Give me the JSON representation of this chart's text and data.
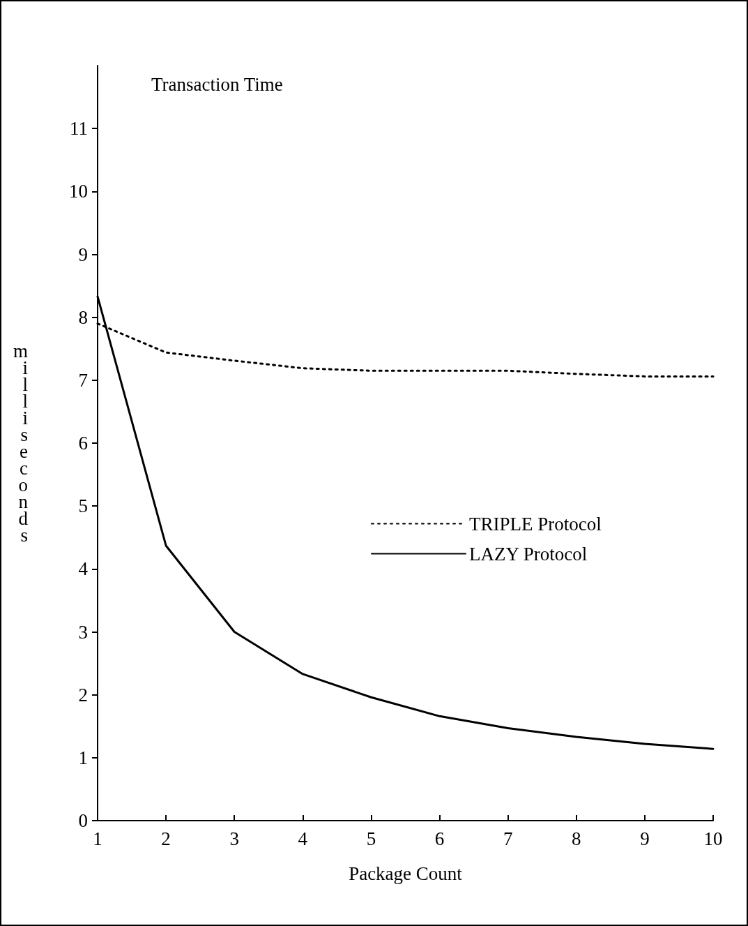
{
  "chart_data": {
    "type": "line",
    "title": "Transaction Time",
    "xlabel": "Package Count",
    "ylabel": "milliseconds",
    "x": [
      1,
      2,
      3,
      4,
      5,
      6,
      7,
      8,
      9,
      10
    ],
    "xlim": [
      1,
      10
    ],
    "xticks": [
      1,
      2,
      3,
      4,
      5,
      6,
      7,
      8,
      9,
      10
    ],
    "ylim": [
      0,
      12
    ],
    "yticks": [
      0,
      1,
      2,
      3,
      4,
      5,
      6,
      7,
      8,
      9,
      10,
      11
    ],
    "grid": false,
    "legend": "right",
    "marker": "none",
    "series": [
      {
        "name": "TRIPLE Protocol",
        "color": "#000000",
        "line_style": "dotted",
        "values": [
          7.9,
          7.44,
          7.31,
          7.19,
          7.15,
          7.15,
          7.15,
          7.1,
          7.06,
          7.06
        ]
      },
      {
        "name": "LAZY Protocol",
        "color": "#000000",
        "line_style": "solid",
        "values": [
          8.33,
          4.37,
          3.0,
          2.33,
          1.96,
          1.66,
          1.47,
          1.33,
          1.22,
          1.14
        ]
      }
    ]
  }
}
